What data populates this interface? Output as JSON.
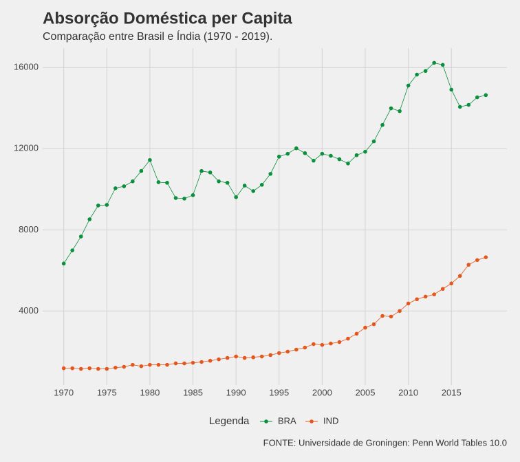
{
  "chart_data": {
    "type": "line",
    "title": "Absorção Doméstica per Capita",
    "subtitle": "Comparação entre Brasil e Índia (1970 - 2019).",
    "caption": "FONTE: Universidade de Groningen: Penn World Tables 10.0",
    "legend_title": "Legenda",
    "x": [
      1970,
      1971,
      1972,
      1973,
      1974,
      1975,
      1976,
      1977,
      1978,
      1979,
      1980,
      1981,
      1982,
      1983,
      1984,
      1985,
      1986,
      1987,
      1988,
      1989,
      1990,
      1991,
      1992,
      1993,
      1994,
      1995,
      1996,
      1997,
      1998,
      1999,
      2000,
      2001,
      2002,
      2003,
      2004,
      2005,
      2006,
      2007,
      2008,
      2009,
      2010,
      2011,
      2012,
      2013,
      2014,
      2015,
      2016,
      2017,
      2018,
      2019
    ],
    "series": [
      {
        "name": "BRA",
        "color": "#0a8f3c",
        "values": [
          6340,
          6990,
          7670,
          8520,
          9200,
          9230,
          10050,
          10150,
          10390,
          10900,
          11440,
          10350,
          10320,
          9570,
          9540,
          9710,
          10900,
          10830,
          10390,
          10320,
          9610,
          10180,
          9910,
          10220,
          10760,
          11610,
          11750,
          12020,
          11780,
          11410,
          11750,
          11650,
          11480,
          11270,
          11680,
          11850,
          12360,
          13170,
          13990,
          13850,
          15110,
          15650,
          15830,
          16230,
          16130,
          14910,
          14060,
          14160,
          14530,
          14640
        ]
      },
      {
        "name": "IND",
        "color": "#e4571c",
        "values": [
          1180,
          1180,
          1150,
          1180,
          1150,
          1150,
          1210,
          1250,
          1350,
          1280,
          1350,
          1350,
          1350,
          1420,
          1420,
          1450,
          1490,
          1550,
          1620,
          1690,
          1760,
          1690,
          1720,
          1760,
          1830,
          1930,
          2000,
          2100,
          2200,
          2370,
          2330,
          2400,
          2470,
          2640,
          2880,
          3180,
          3350,
          3760,
          3730,
          4000,
          4370,
          4580,
          4710,
          4820,
          5090,
          5360,
          5730,
          6280,
          6510,
          6650
        ]
      }
    ],
    "xlim": [
      1967.55,
      2021.45
    ],
    "xticks": [
      1970,
      1975,
      1980,
      1985,
      1990,
      1995,
      2000,
      2005,
      2010,
      2015
    ],
    "ylim": [
      355,
      16955
    ],
    "yticks": [
      4000,
      8000,
      12000,
      16000
    ],
    "grid": true,
    "legend": "bottom"
  }
}
